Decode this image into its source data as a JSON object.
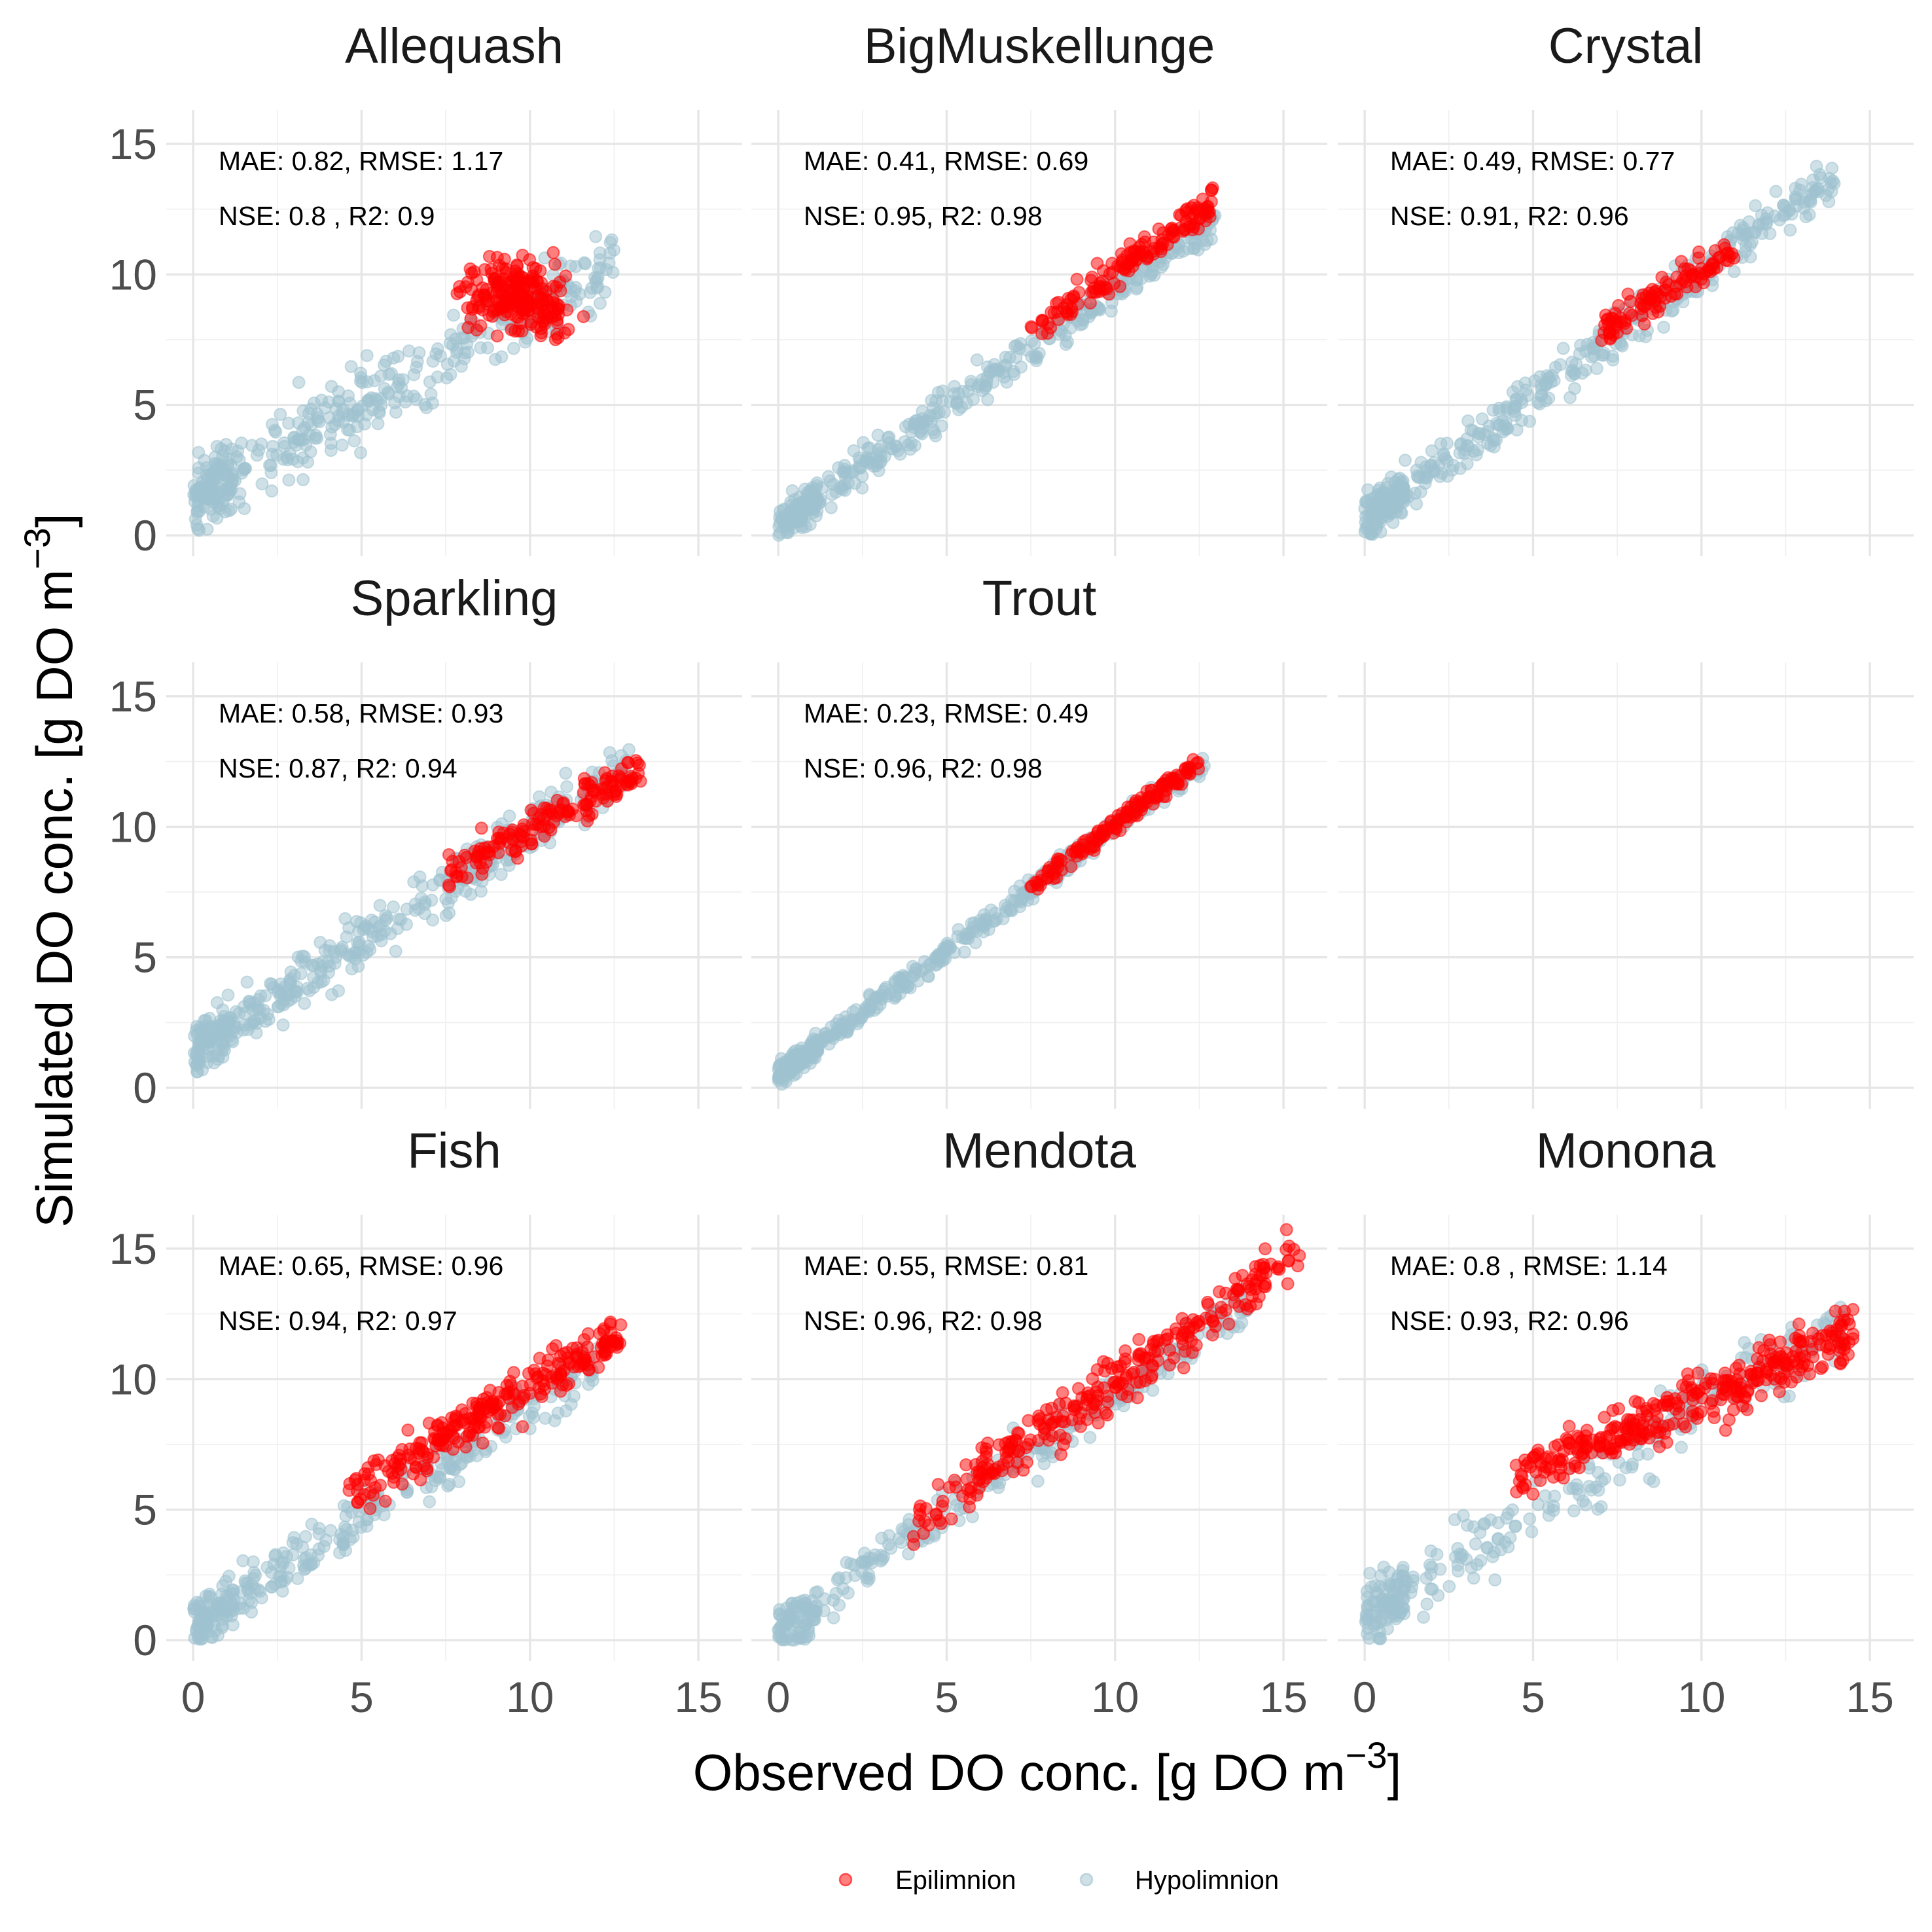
{
  "figure": {
    "ylabel": "Simulated DO conc. [g DO  m",
    "ylabel_sup": "−3",
    "ylabel_close": "]",
    "xlabel": "Observed DO conc. [g DO  m",
    "xlabel_sup": "−3",
    "xlabel_close": "]"
  },
  "legend": {
    "placement": "bottom",
    "items": [
      {
        "label": "Epilimnion",
        "color": "#ff0000"
      },
      {
        "label": "Hypolimnion",
        "color": "#9fc2cf"
      }
    ]
  },
  "colors": {
    "epilimnion": "#ff0000",
    "hypolimnion": "#9fc2cf",
    "grid": "#e6e6e6"
  },
  "chart_data": {
    "type": "scatter",
    "layout": "facet_wrap 3 columns",
    "xlim": [
      -0.8,
      16.3
    ],
    "ylim": [
      -0.8,
      16.3
    ],
    "xticks": [
      0,
      5,
      10,
      15
    ],
    "yticks": [
      0,
      5,
      10,
      15
    ],
    "xtick_labels": [
      "0",
      "5",
      "10",
      "15"
    ],
    "ytick_labels": [
      "0",
      "5",
      "10",
      "15"
    ],
    "grid": true,
    "series": [
      {
        "name": "Epilimnion"
      },
      {
        "name": "Hypolimnion"
      }
    ],
    "facets": [
      {
        "title": "Allequash",
        "mae": "0.82",
        "rmse": "1.17",
        "nse": "0.8  ",
        "r2": "0.9",
        "epi": {
          "x": [
            7.5,
            13.2
          ],
          "y": [
            7.5,
            11.4
          ],
          "n": 230,
          "cx": 9.6,
          "cy": 9.2
        },
        "hypo": {
          "x": [
            0,
            12.5
          ],
          "n": 420,
          "slope": 0.72,
          "intercept": 1.4,
          "sd": 1.0
        }
      },
      {
        "title": "BigMuskellunge",
        "mae": "0.41",
        "rmse": "0.69",
        "nse": "0.95",
        "r2": "0.98",
        "epi": {
          "x": [
            7.5,
            13.0
          ],
          "n": 150,
          "slope": 0.92,
          "intercept": 0.9,
          "sd": 0.45
        },
        "hypo": {
          "x": [
            0,
            13.0
          ],
          "n": 420,
          "slope": 0.9,
          "intercept": 0.4,
          "sd": 0.5
        }
      },
      {
        "title": "Crystal",
        "mae": "0.49",
        "rmse": "0.77",
        "nse": "0.91",
        "r2": "0.96",
        "epi": {
          "x": [
            7.0,
            11.0
          ],
          "n": 110,
          "slope": 0.8,
          "intercept": 2.2,
          "sd": 0.45
        },
        "hypo": {
          "x": [
            0,
            14.0
          ],
          "n": 450,
          "slope": 0.95,
          "intercept": 0.6,
          "sd": 0.6
        }
      },
      {
        "title": "Sparkling",
        "mae": "0.58",
        "rmse": "0.93",
        "nse": "0.87",
        "r2": "0.94",
        "epi": {
          "x": [
            7.5,
            13.3
          ],
          "n": 160,
          "slope": 0.7,
          "intercept": 2.9,
          "sd": 0.55
        },
        "hypo": {
          "x": [
            0,
            13.0
          ],
          "n": 440,
          "slope": 0.85,
          "intercept": 1.4,
          "sd": 0.7
        }
      },
      {
        "title": "Trout",
        "mae": "0.23",
        "rmse": "0.49",
        "nse": "0.96",
        "r2": "0.98",
        "epi": {
          "x": [
            7.5,
            12.5
          ],
          "n": 150,
          "slope": 0.95,
          "intercept": 0.6,
          "sd": 0.25
        },
        "hypo": {
          "x": [
            0,
            12.7
          ],
          "n": 460,
          "slope": 0.95,
          "intercept": 0.5,
          "sd": 0.3
        }
      },
      null,
      {
        "title": "Fish",
        "mae": "0.65",
        "rmse": "0.96",
        "nse": "0.94",
        "r2": "0.97",
        "epi": {
          "x": [
            4.5,
            12.7
          ],
          "n": 260,
          "slope": 0.75,
          "intercept": 2.2,
          "sd": 0.6
        },
        "hypo": {
          "x": [
            0,
            12.0
          ],
          "n": 330,
          "slope": 0.85,
          "intercept": 0.5,
          "sd": 0.7
        }
      },
      {
        "title": "Mendota",
        "mae": "0.55",
        "rmse": "0.81",
        "nse": "0.96",
        "r2": "0.98",
        "epi": {
          "x": [
            4.0,
            15.5
          ],
          "n": 280,
          "slope": 0.9,
          "intercept": 0.9,
          "sd": 0.7
        },
        "hypo": {
          "x": [
            0,
            14.0
          ],
          "n": 300,
          "slope": 0.9,
          "intercept": 0.4,
          "sd": 0.65
        }
      },
      {
        "title": "Monona",
        "mae": "0.8  ",
        "rmse": "1.14",
        "nse": "0.93",
        "r2": "0.96",
        "epi": {
          "x": [
            4.5,
            14.5
          ],
          "n": 330,
          "slope": 0.55,
          "intercept": 3.8,
          "sd": 0.75
        },
        "hypo": {
          "x": [
            0,
            14.2
          ],
          "n": 300,
          "slope": 0.8,
          "intercept": 0.9,
          "sd": 0.9
        }
      }
    ]
  }
}
